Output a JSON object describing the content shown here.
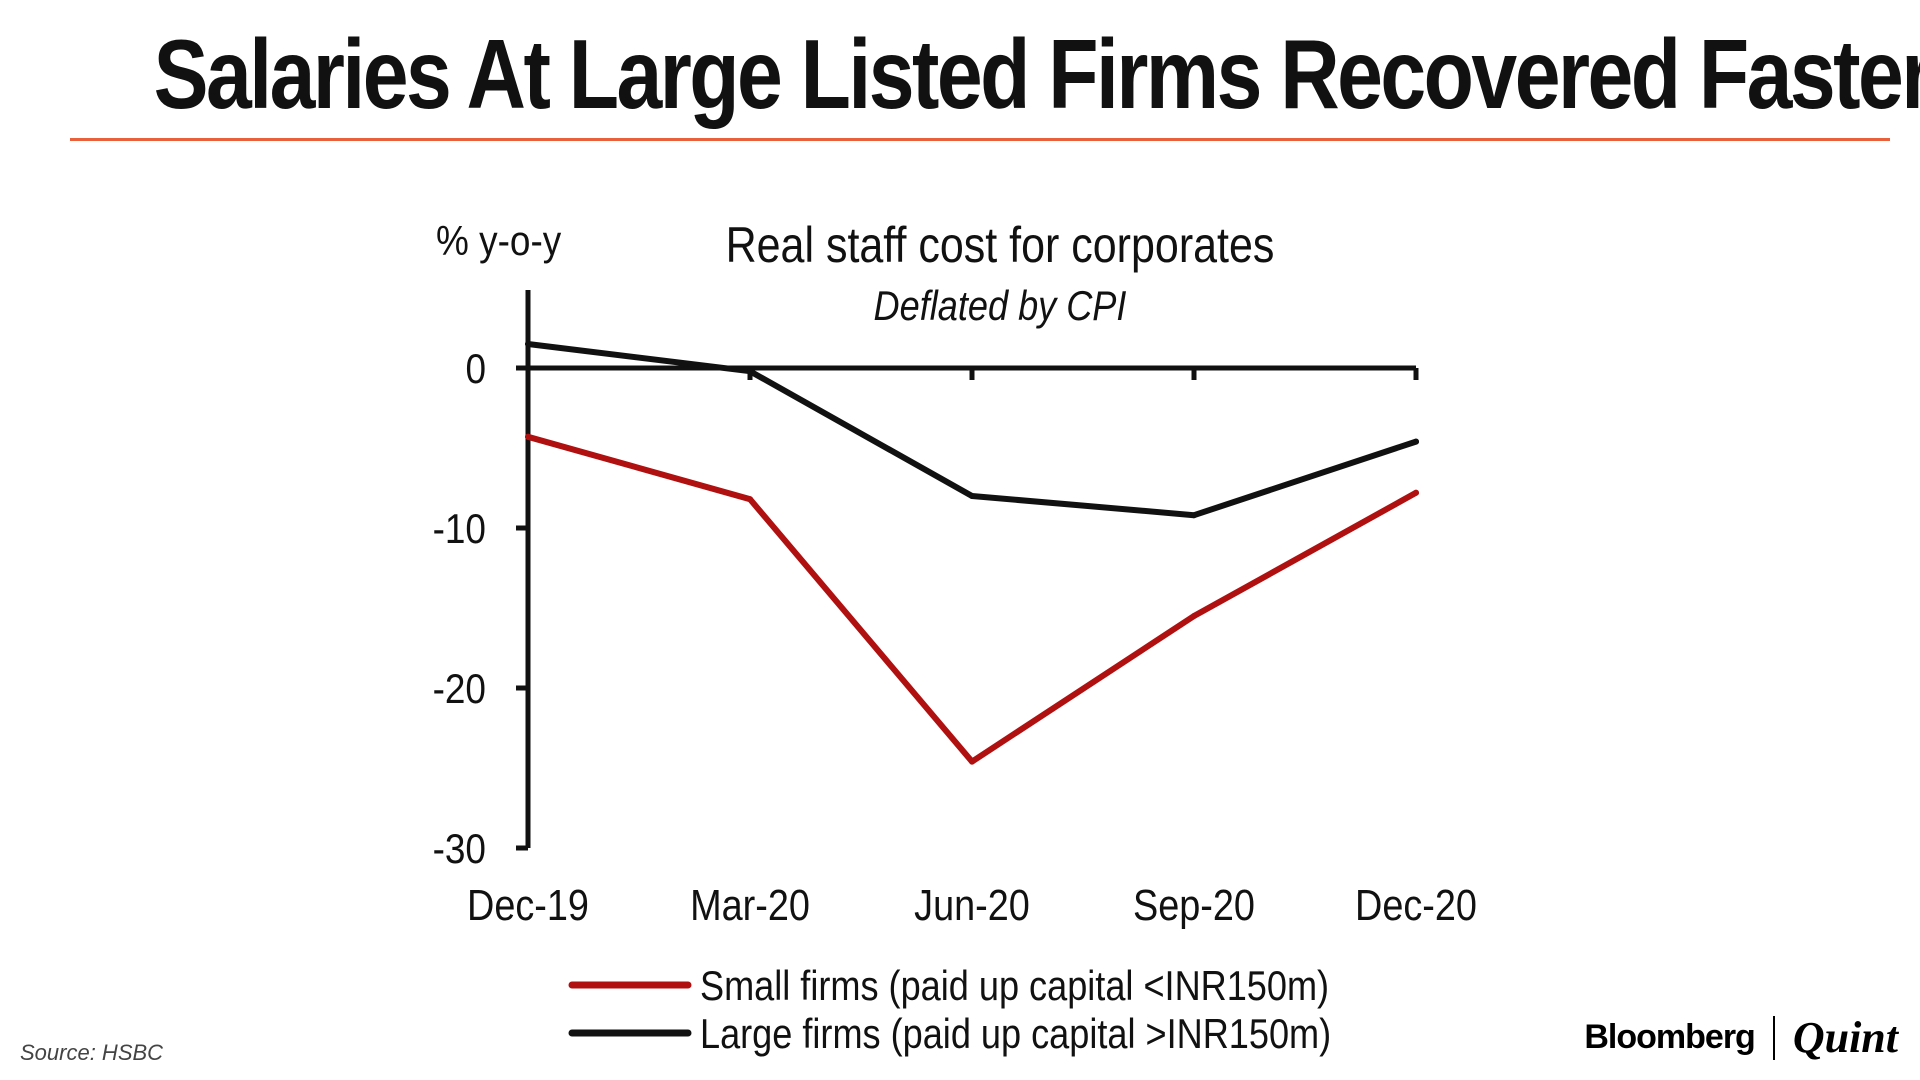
{
  "headline": "Salaries At Large Listed Firms Recovered Faster",
  "source": "Source: HSBC",
  "brand": {
    "part1": "Bloomberg",
    "part2": "Quint"
  },
  "colors": {
    "rule": "#e8603c",
    "small": "#b01010",
    "large": "#111111"
  },
  "chart_data": {
    "type": "line",
    "title": "Real staff cost for corporates",
    "subtitle": "Deflated by CPI",
    "ylabel": "% y-o-y",
    "xlabel": "",
    "categories": [
      "Dec-19",
      "Mar-20",
      "Jun-20",
      "Sep-20",
      "Dec-20"
    ],
    "ylim": [
      -30,
      5
    ],
    "yticks": [
      0,
      -10,
      -20,
      -30
    ],
    "grid": false,
    "legend": "bottom",
    "series": [
      {
        "name": "Small firms (paid up capital <INR150m)",
        "color": "#b01010",
        "values": [
          -4.3,
          -8.2,
          -24.6,
          -15.5,
          -7.8
        ]
      },
      {
        "name": "Large firms (paid up capital >INR150m)",
        "color": "#111111",
        "values": [
          1.5,
          -0.2,
          -8.0,
          -9.2,
          -4.6
        ]
      }
    ]
  }
}
